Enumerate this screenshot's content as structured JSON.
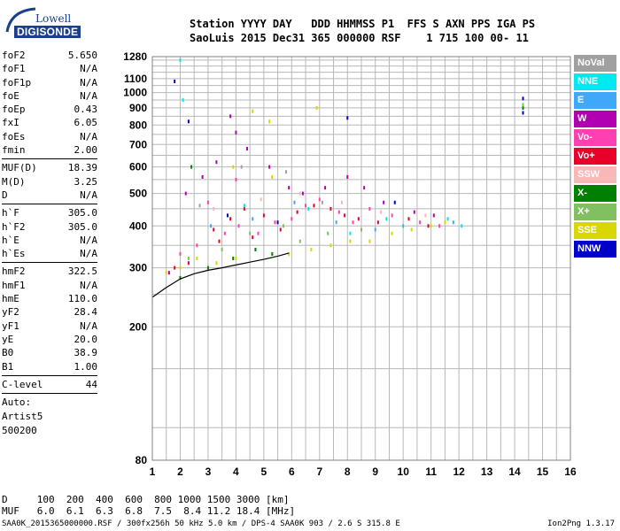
{
  "logo": {
    "line1": "Lowell",
    "line2": "DIGISONDE"
  },
  "header": {
    "line1": "Station YYYY DAY   DDD HHMMSS P1  FFS S AXN PPS IGA PS",
    "line2": "SaoLuis 2015 Dec31 365 000000 RSF    1 715 100 00- 11"
  },
  "params_group1": [
    {
      "name": "foF2",
      "value": "5.650"
    },
    {
      "name": "foF1",
      "value": "N/A"
    },
    {
      "name": "foF1p",
      "value": "N/A"
    },
    {
      "name": "foE",
      "value": "N/A"
    },
    {
      "name": "foEp",
      "value": "0.43"
    },
    {
      "name": "fxI",
      "value": "6.05"
    },
    {
      "name": "foEs",
      "value": "N/A"
    },
    {
      "name": "fmin",
      "value": "2.00"
    }
  ],
  "params_group2": [
    {
      "name": "MUF(D)",
      "value": "18.39"
    },
    {
      "name": "M(D)",
      "value": "3.25"
    },
    {
      "name": "D",
      "value": "N/A"
    }
  ],
  "params_group3": [
    {
      "name": "h`F",
      "value": "305.0"
    },
    {
      "name": "h`F2",
      "value": "305.0"
    },
    {
      "name": "h`E",
      "value": "N/A"
    },
    {
      "name": "h`Es",
      "value": "N/A"
    }
  ],
  "params_group4": [
    {
      "name": "hmF2",
      "value": "322.5"
    },
    {
      "name": "hmF1",
      "value": "N/A"
    },
    {
      "name": "hmE",
      "value": "110.0"
    },
    {
      "name": "yF2",
      "value": "28.4"
    },
    {
      "name": "yF1",
      "value": "N/A"
    },
    {
      "name": "yE",
      "value": "20.0"
    },
    {
      "name": "B0",
      "value": "38.9"
    },
    {
      "name": "B1",
      "value": "1.00"
    }
  ],
  "params_group5": [
    {
      "name": "C-level",
      "value": "44"
    }
  ],
  "auto": {
    "line1": "Auto:",
    "line2": "Artist5",
    "line3": "500200"
  },
  "legend": [
    {
      "label": "NoVal",
      "color": "#a0a0a0"
    },
    {
      "label": "NNE",
      "color": "#00e8f0"
    },
    {
      "label": "E",
      "color": "#40a8f8"
    },
    {
      "label": "W",
      "color": "#b000b0"
    },
    {
      "label": "Vo-",
      "color": "#ff40b0"
    },
    {
      "label": "Vo+",
      "color": "#e8002a"
    },
    {
      "label": "SSW",
      "color": "#f8b8b8"
    },
    {
      "label": "X-",
      "color": "#008000"
    },
    {
      "label": "X+",
      "color": "#80c060"
    },
    {
      "label": "SSE",
      "color": "#d8d800"
    },
    {
      "label": "NNW",
      "color": "#0000c8"
    }
  ],
  "footer": {
    "d_line": "D     100  200  400  600  800 1000 1500 3000 [km]",
    "muf_line": "MUF   6.0  6.1  6.3  6.8  7.5  8.4 11.2 18.4 [MHz]",
    "info": "SAA0K_2015365000000.RSF / 300fx256h 50 kHz 5.0 km / DPS-4 SAA0K 903 / 2.6 S 315.8 E",
    "version": "Ion2Png 1.3.17"
  },
  "chart_data": {
    "type": "scatter",
    "title": "",
    "xlabel": "",
    "ylabel": "",
    "xlim": [
      1,
      16
    ],
    "ylim": [
      80,
      1280
    ],
    "y_scale": "log",
    "x_ticks": [
      1,
      2,
      3,
      4,
      5,
      6,
      7,
      8,
      9,
      10,
      11,
      12,
      13,
      14,
      15,
      16
    ],
    "y_ticks": [
      80,
      200,
      300,
      400,
      500,
      600,
      700,
      800,
      900,
      1000,
      1100,
      1280
    ],
    "grid": true,
    "legend_position": "right",
    "series": [
      {
        "name": "Vo+",
        "color": "#e8002a",
        "points": [
          [
            1.8,
            300
          ],
          [
            2.3,
            310
          ],
          [
            3.2,
            390
          ],
          [
            3.8,
            420
          ],
          [
            4.3,
            450
          ],
          [
            5.0,
            430
          ],
          [
            6.2,
            440
          ],
          [
            6.8,
            460
          ],
          [
            7.4,
            450
          ],
          [
            7.9,
            430
          ],
          [
            8.4,
            420
          ],
          [
            9.1,
            410
          ],
          [
            10.2,
            420
          ],
          [
            10.9,
            400
          ],
          [
            3.4,
            360
          ],
          [
            4.6,
            370
          ],
          [
            5.6,
            390
          ]
        ]
      },
      {
        "name": "Vo-",
        "color": "#ff40b0",
        "points": [
          [
            2.0,
            330
          ],
          [
            2.6,
            350
          ],
          [
            3.6,
            380
          ],
          [
            4.1,
            400
          ],
          [
            4.8,
            380
          ],
          [
            5.4,
            410
          ],
          [
            6.0,
            420
          ],
          [
            6.5,
            460
          ],
          [
            7.0,
            480
          ],
          [
            7.7,
            440
          ],
          [
            8.2,
            410
          ],
          [
            8.8,
            450
          ],
          [
            9.6,
            430
          ],
          [
            10.6,
            410
          ],
          [
            11.3,
            400
          ],
          [
            3.0,
            470
          ],
          [
            4.0,
            550
          ]
        ]
      },
      {
        "name": "W",
        "color": "#b000b0",
        "points": [
          [
            1.6,
            290
          ],
          [
            2.2,
            500
          ],
          [
            2.8,
            560
          ],
          [
            3.3,
            620
          ],
          [
            4.4,
            680
          ],
          [
            5.2,
            600
          ],
          [
            5.9,
            520
          ],
          [
            6.4,
            500
          ],
          [
            7.2,
            520
          ],
          [
            8.0,
            560
          ],
          [
            8.6,
            520
          ],
          [
            9.3,
            470
          ],
          [
            10.4,
            440
          ],
          [
            11.1,
            430
          ],
          [
            4.0,
            760
          ],
          [
            3.8,
            850
          ]
        ]
      },
      {
        "name": "SSE",
        "color": "#d8d800",
        "points": [
          [
            1.5,
            290
          ],
          [
            2.0,
            300
          ],
          [
            2.6,
            320
          ],
          [
            3.3,
            310
          ],
          [
            4.0,
            320
          ],
          [
            4.7,
            340
          ],
          [
            5.3,
            560
          ],
          [
            5.9,
            330
          ],
          [
            6.7,
            340
          ],
          [
            7.4,
            350
          ],
          [
            8.1,
            360
          ],
          [
            8.8,
            360
          ],
          [
            9.6,
            380
          ],
          [
            10.3,
            390
          ],
          [
            11.0,
            400
          ],
          [
            11.5,
            410
          ],
          [
            3.9,
            600
          ],
          [
            4.6,
            880
          ],
          [
            5.2,
            820
          ],
          [
            6.9,
            900
          ]
        ]
      },
      {
        "name": "X-",
        "color": "#008000",
        "points": [
          [
            2.0,
            280
          ],
          [
            3.0,
            300
          ],
          [
            3.9,
            320
          ],
          [
            4.7,
            340
          ],
          [
            5.3,
            330
          ],
          [
            2.4,
            600
          ],
          [
            14.3,
            900
          ]
        ]
      },
      {
        "name": "X+",
        "color": "#80c060",
        "points": [
          [
            2.3,
            320
          ],
          [
            3.5,
            340
          ],
          [
            4.5,
            380
          ],
          [
            5.7,
            400
          ],
          [
            6.3,
            360
          ],
          [
            7.3,
            380
          ],
          [
            8.5,
            390
          ],
          [
            14.3,
            920
          ]
        ]
      },
      {
        "name": "NNE",
        "color": "#00e8f0",
        "points": [
          [
            2.0,
            1250
          ],
          [
            2.1,
            950
          ],
          [
            4.3,
            460
          ],
          [
            6.6,
            450
          ],
          [
            8.1,
            380
          ],
          [
            9.4,
            420
          ],
          [
            11.6,
            420
          ],
          [
            12.1,
            400
          ]
        ]
      },
      {
        "name": "E",
        "color": "#40a8f8",
        "points": [
          [
            3.1,
            400
          ],
          [
            4.6,
            420
          ],
          [
            6.1,
            470
          ],
          [
            7.6,
            410
          ],
          [
            9.0,
            390
          ],
          [
            10.0,
            400
          ],
          [
            11.8,
            410
          ]
        ]
      },
      {
        "name": "NNW",
        "color": "#0000c8",
        "points": [
          [
            1.8,
            1080
          ],
          [
            2.3,
            820
          ],
          [
            3.7,
            430
          ],
          [
            5.5,
            410
          ],
          [
            8.0,
            840
          ],
          [
            9.7,
            470
          ],
          [
            14.3,
            960
          ],
          [
            14.3,
            870
          ]
        ]
      },
      {
        "name": "SSW",
        "color": "#f8b8b8",
        "points": [
          [
            3.2,
            450
          ],
          [
            4.9,
            480
          ],
          [
            6.3,
            500
          ],
          [
            7.8,
            470
          ],
          [
            9.2,
            440
          ],
          [
            10.8,
            430
          ]
        ]
      },
      {
        "name": "NoVal",
        "color": "#a0a0a0",
        "points": [
          [
            2.7,
            460
          ],
          [
            4.2,
            600
          ],
          [
            5.8,
            580
          ],
          [
            7.1,
            470
          ]
        ]
      }
    ],
    "profile_curve": [
      [
        1.0,
        245
      ],
      [
        1.5,
        262
      ],
      [
        2.0,
        278
      ],
      [
        2.5,
        288
      ],
      [
        3.0,
        295
      ],
      [
        3.5,
        300
      ],
      [
        4.0,
        306
      ],
      [
        4.5,
        312
      ],
      [
        5.0,
        318
      ],
      [
        5.5,
        325
      ],
      [
        5.9,
        332
      ]
    ]
  }
}
